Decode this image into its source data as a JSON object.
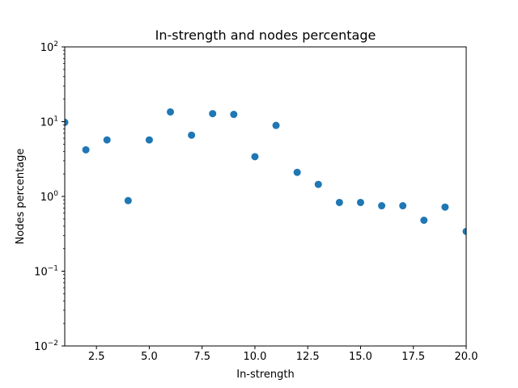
{
  "chart_data": {
    "type": "scatter",
    "title": "In-strength and nodes percentage",
    "xlabel": "In-strength",
    "ylabel": "Nodes percentage",
    "xlim": [
      1,
      20
    ],
    "ylim": [
      0.01,
      100
    ],
    "yscale": "log",
    "grid": false,
    "color": "#1f77b4",
    "x_ticks": [
      2.5,
      5.0,
      7.5,
      10.0,
      12.5,
      15.0,
      17.5,
      20.0
    ],
    "x_tick_labels": [
      "2.5",
      "5.0",
      "7.5",
      "10.0",
      "12.5",
      "15.0",
      "17.5",
      "20.0"
    ],
    "y_ticks": [
      0.01,
      0.1,
      1,
      10,
      100
    ],
    "y_tick_labels": [
      {
        "base": "10",
        "exp": "−2"
      },
      {
        "base": "10",
        "exp": "−1"
      },
      {
        "base": "10",
        "exp": "0"
      },
      {
        "base": "10",
        "exp": "1"
      },
      {
        "base": "10",
        "exp": "2"
      }
    ],
    "x": [
      1,
      2,
      3,
      4,
      5,
      6,
      7,
      8,
      9,
      10,
      11,
      12,
      13,
      14,
      15,
      16,
      17,
      18,
      19,
      20
    ],
    "y": [
      9.8,
      4.2,
      5.7,
      0.88,
      5.7,
      13.5,
      6.6,
      12.8,
      12.5,
      3.4,
      8.9,
      2.1,
      1.45,
      0.83,
      0.83,
      0.75,
      0.75,
      0.48,
      0.72,
      0.34
    ]
  }
}
